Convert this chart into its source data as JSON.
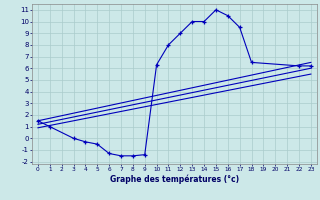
{
  "xlabel": "Graphe des températures (°c)",
  "background_color": "#cce8e8",
  "grid_color": "#aacccc",
  "line_color": "#0000bb",
  "main_x": [
    0,
    1,
    3,
    4,
    5,
    6,
    7,
    8,
    9,
    10,
    11,
    12,
    13,
    14,
    15,
    16,
    17,
    18,
    22,
    23
  ],
  "main_y": [
    1.5,
    1.0,
    0.0,
    -0.3,
    -0.5,
    -1.3,
    -1.5,
    -1.5,
    -1.4,
    6.3,
    8.0,
    9.0,
    10.0,
    10.0,
    11.0,
    10.5,
    9.5,
    6.5,
    6.2,
    6.2
  ],
  "line1_x": [
    0,
    23
  ],
  "line1_y": [
    1.5,
    6.5
  ],
  "line2_x": [
    0,
    23
  ],
  "line2_y": [
    1.2,
    6.0
  ],
  "line3_x": [
    0,
    23
  ],
  "line3_y": [
    0.9,
    5.5
  ],
  "ylim": [
    -2.2,
    11.5
  ],
  "yticks": [
    -2,
    -1,
    0,
    1,
    2,
    3,
    4,
    5,
    6,
    7,
    8,
    9,
    10,
    11
  ],
  "xlim": [
    -0.5,
    23.5
  ],
  "xticks": [
    0,
    1,
    2,
    3,
    4,
    5,
    6,
    7,
    8,
    9,
    10,
    11,
    12,
    13,
    14,
    15,
    16,
    17,
    18,
    19,
    20,
    21,
    22,
    23
  ],
  "figsize": [
    3.2,
    2.0
  ],
  "dpi": 100
}
